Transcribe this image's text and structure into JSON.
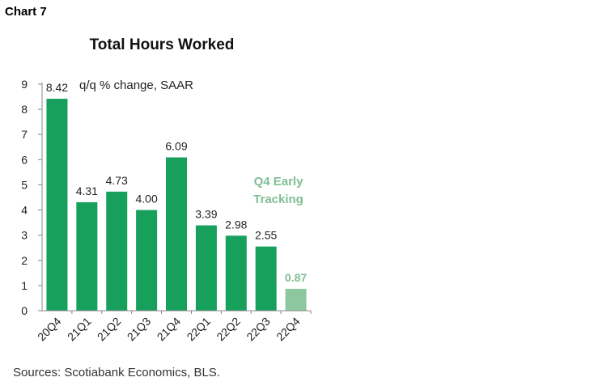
{
  "header": {
    "chart_number": "Chart 7"
  },
  "footer": {
    "source": "Sources: Scotiabank Economics, BLS."
  },
  "chart_data": {
    "type": "bar",
    "title": "Total Hours Worked",
    "subtitle": "q/q % change, SAAR",
    "categories": [
      "20Q4",
      "21Q1",
      "21Q2",
      "21Q3",
      "21Q4",
      "22Q1",
      "22Q2",
      "22Q3",
      "22Q4"
    ],
    "values": [
      8.42,
      4.31,
      4.73,
      4.0,
      6.09,
      3.39,
      2.98,
      2.55,
      0.87
    ],
    "data_labels": [
      "8.42",
      "4.31",
      "4.73",
      "4.00",
      "6.09",
      "3.39",
      "2.98",
      "2.55",
      "0.87"
    ],
    "ylim": [
      0,
      9
    ],
    "yticks": [
      0,
      1,
      2,
      3,
      4,
      5,
      6,
      7,
      8,
      9
    ],
    "xlabel": "",
    "ylabel": "",
    "grid": false,
    "legend": "none",
    "annotation": "Q4 Early Tracking",
    "highlight_category": "22Q4",
    "colors": {
      "bar": "#16a05c",
      "highlight": "#8cc7a0",
      "annotation": "#7fbf94"
    }
  }
}
